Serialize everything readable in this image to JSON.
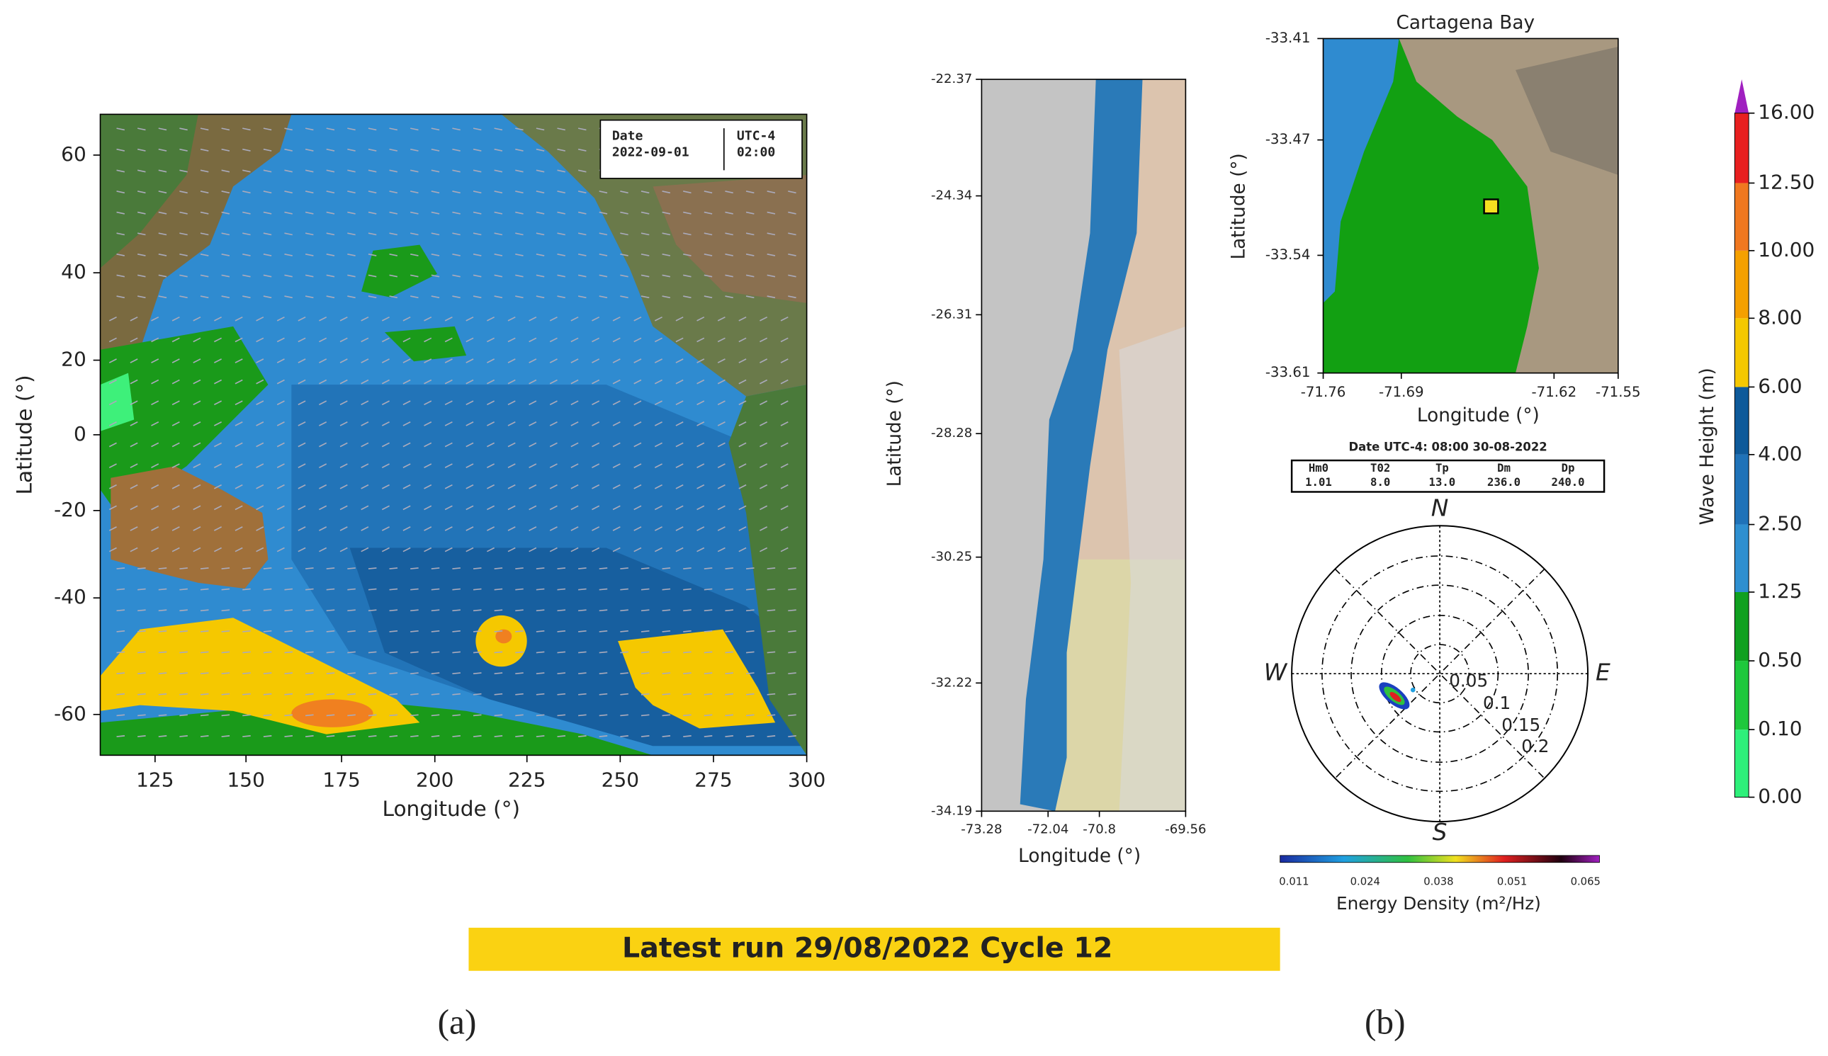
{
  "panel_a": {
    "label": "(a)",
    "date_box": {
      "date_label": "Date",
      "date": "2022-09-01",
      "zone_label": "UTC-4",
      "time": "02:00"
    },
    "y_axis": {
      "label": "Latitude (°)",
      "ticks": [
        "60",
        "40",
        "20",
        "0",
        "-20",
        "-40",
        "-60"
      ]
    },
    "x_axis": {
      "label": "Longitude (°)",
      "ticks": [
        "125",
        "150",
        "175",
        "200",
        "225",
        "250",
        "275",
        "300"
      ]
    }
  },
  "panel_b": {
    "label": "(b)",
    "coast_map": {
      "y_axis": {
        "label": "Latitude (°)",
        "ticks": [
          "-22.37",
          "-24.34",
          "-26.31",
          "-28.28",
          "-30.25",
          "-32.22",
          "-34.19"
        ]
      },
      "x_axis": {
        "label": "Longitude (°)",
        "ticks": [
          "-73.28",
          "-72.04",
          "-70.8",
          "-69.56"
        ]
      }
    },
    "bay_map": {
      "title": "Cartagena Bay",
      "y_axis": {
        "label": "Latitude (°)",
        "ticks": [
          "-33.41",
          "-33.47",
          "-33.54",
          "-33.61"
        ]
      },
      "x_axis": {
        "label": "Longitude (°)",
        "ticks": [
          "-71.76",
          "-71.69",
          "-71.62",
          "-71.55"
        ]
      }
    },
    "spectrum": {
      "header": "Date UTC-4:  08:00 30-08-2022",
      "table": {
        "columns": [
          "Hm0",
          "T02",
          "Tp",
          "Dm",
          "Dp"
        ],
        "values": [
          "1.01",
          "8.0",
          "13.0",
          "236.0",
          "240.0"
        ]
      },
      "directions": {
        "north": "N",
        "east": "E",
        "south": "S",
        "west": "W"
      },
      "ring_labels": [
        "0.05",
        "0.1",
        "0.15",
        "0.2"
      ],
      "colorbar": {
        "label": "Energy Density (m²/Hz)",
        "ticks": [
          "0.011",
          "0.024",
          "0.038",
          "0.051",
          "0.065"
        ]
      }
    },
    "wave_height_colorbar": {
      "label": "Wave Height (m)",
      "ticks": [
        "0.00",
        "0.10",
        "0.50",
        "1.25",
        "2.50",
        "4.00",
        "6.00",
        "8.00",
        "10.00",
        "12.50",
        "16.00"
      ]
    }
  },
  "banner": "Latest run 29/08/2022 Cycle 12"
}
